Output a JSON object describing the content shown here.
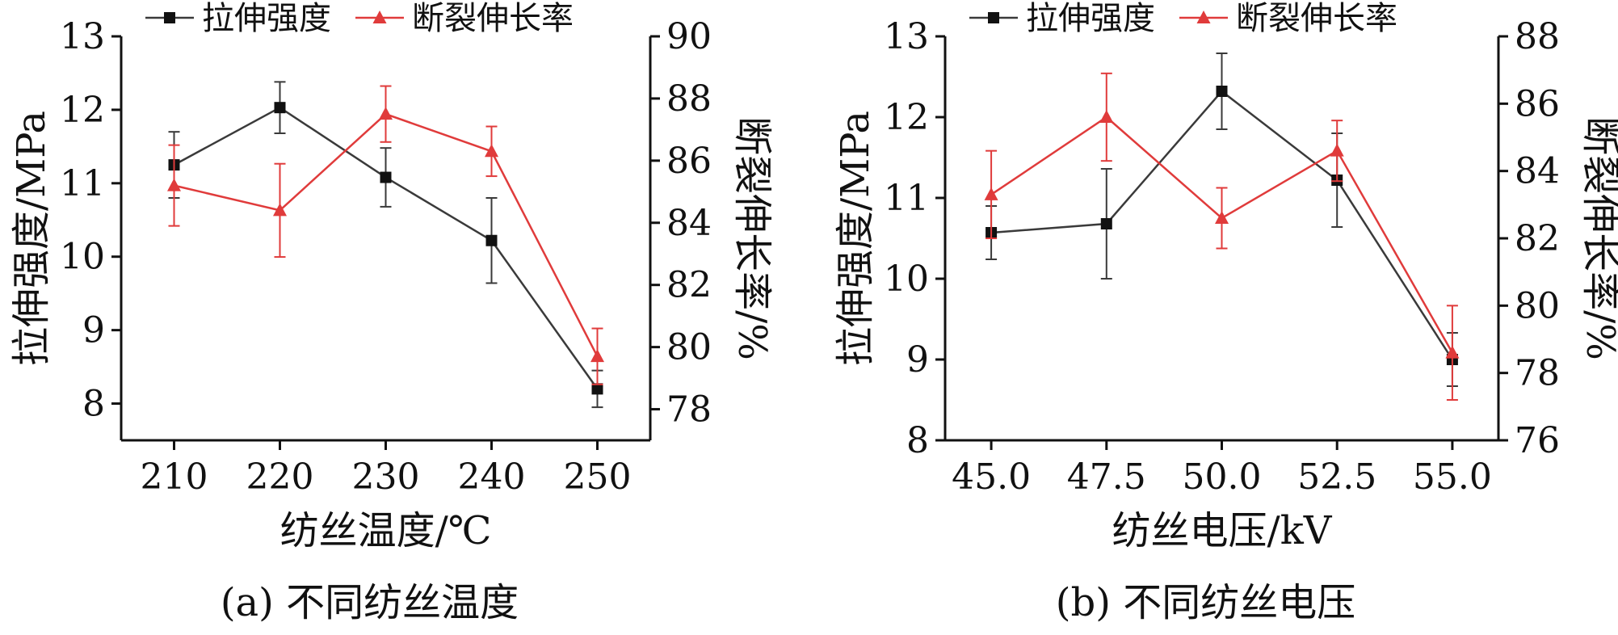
{
  "chart_data": [
    {
      "type": "line",
      "caption": "(a) 不同纺丝温度",
      "xlabel": "纺丝温度/℃",
      "ylabel": "拉伸强度/MPa",
      "y2label": "断裂伸长率/%",
      "categories": [
        "210",
        "220",
        "230",
        "240",
        "250"
      ],
      "x": [
        210,
        220,
        230,
        240,
        250
      ],
      "xlim": [
        205,
        255
      ],
      "ylim": [
        7.5,
        13
      ],
      "yticks": [
        8,
        9,
        10,
        11,
        12,
        13
      ],
      "y2lim": [
        77,
        90
      ],
      "y2ticks": [
        78,
        80,
        82,
        84,
        86,
        88,
        90
      ],
      "legend_position": "top",
      "grid": false,
      "series": [
        {
          "name": "拉伸强度",
          "axis": "left",
          "marker": "square",
          "color": "#3a3a3a",
          "values": [
            11.25,
            12.03,
            11.08,
            10.22,
            8.2
          ],
          "errors": [
            0.45,
            0.35,
            0.4,
            0.58,
            0.25
          ]
        },
        {
          "name": "断裂伸长率",
          "axis": "right",
          "marker": "triangle",
          "color": "#e03b3b",
          "values": [
            85.2,
            84.4,
            87.5,
            86.3,
            79.7
          ],
          "errors": [
            1.3,
            1.5,
            0.9,
            0.8,
            0.9
          ]
        }
      ]
    },
    {
      "type": "line",
      "caption": "(b) 不同纺丝电压",
      "xlabel": "纺丝电压/kV",
      "ylabel": "拉伸强度/MPa",
      "y2label": "断裂伸长率/%",
      "categories": [
        "45.0",
        "47.5",
        "50.0",
        "52.5",
        "55.0"
      ],
      "x": [
        45.0,
        47.5,
        50.0,
        52.5,
        55.0
      ],
      "xlim": [
        44.0,
        56.0
      ],
      "ylim": [
        8,
        13
      ],
      "yticks": [
        8,
        9,
        10,
        11,
        12,
        13
      ],
      "y2lim": [
        76,
        88
      ],
      "y2ticks": [
        76,
        78,
        80,
        82,
        84,
        86,
        88
      ],
      "legend_position": "top",
      "grid": false,
      "series": [
        {
          "name": "拉伸强度",
          "axis": "left",
          "marker": "square",
          "color": "#3a3a3a",
          "values": [
            10.57,
            10.68,
            12.32,
            11.22,
            9.0
          ],
          "errors": [
            0.33,
            0.68,
            0.47,
            0.58,
            0.33
          ]
        },
        {
          "name": "断裂伸长率",
          "axis": "right",
          "marker": "triangle",
          "color": "#e03b3b",
          "values": [
            83.3,
            85.6,
            82.6,
            84.6,
            78.6
          ],
          "errors": [
            1.3,
            1.3,
            0.9,
            0.9,
            1.4
          ]
        }
      ]
    }
  ]
}
